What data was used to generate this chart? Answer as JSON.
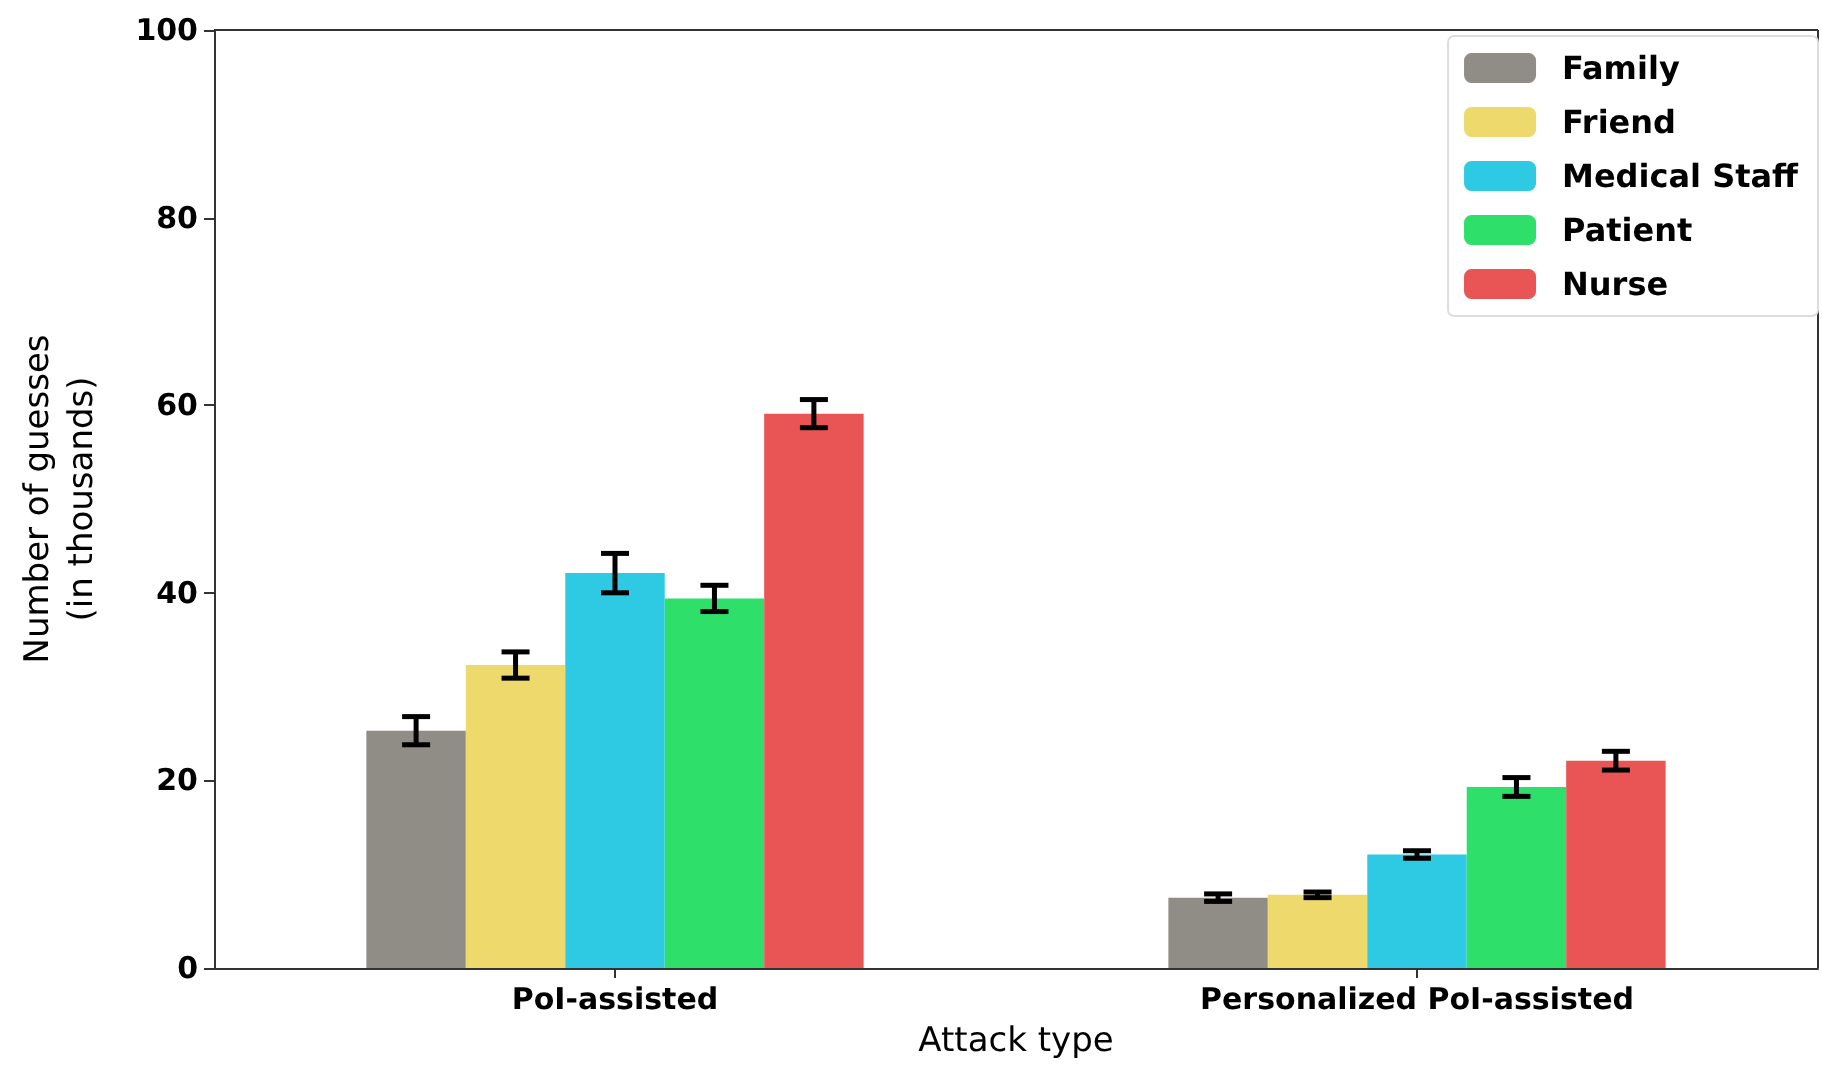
{
  "chart_data": {
    "type": "bar",
    "xlabel": "Attack type",
    "ylabel": "Number of guesses\n(in thousands)",
    "categories": [
      "PoI-assisted",
      "Personalized PoI-assisted"
    ],
    "series": [
      {
        "name": "Family",
        "color": "#908d86",
        "values": [
          25.3,
          7.5
        ],
        "errors": [
          1.5,
          0.4
        ]
      },
      {
        "name": "Friend",
        "color": "#eed96d",
        "values": [
          32.3,
          7.8
        ],
        "errors": [
          1.4,
          0.3
        ]
      },
      {
        "name": "Medical Staff",
        "color": "#2ec9e2",
        "values": [
          42.1,
          12.1
        ],
        "errors": [
          2.1,
          0.4
        ]
      },
      {
        "name": "Patient",
        "color": "#2ee06a",
        "values": [
          39.4,
          19.3
        ],
        "errors": [
          1.4,
          1.0
        ]
      },
      {
        "name": "Nurse",
        "color": "#e95554",
        "values": [
          59.1,
          22.1
        ],
        "errors": [
          1.5,
          1.0
        ]
      }
    ],
    "ylim": [
      0,
      100
    ],
    "yticks": [
      0,
      20,
      40,
      60,
      80,
      100
    ],
    "grid": false,
    "legend": "top right"
  }
}
